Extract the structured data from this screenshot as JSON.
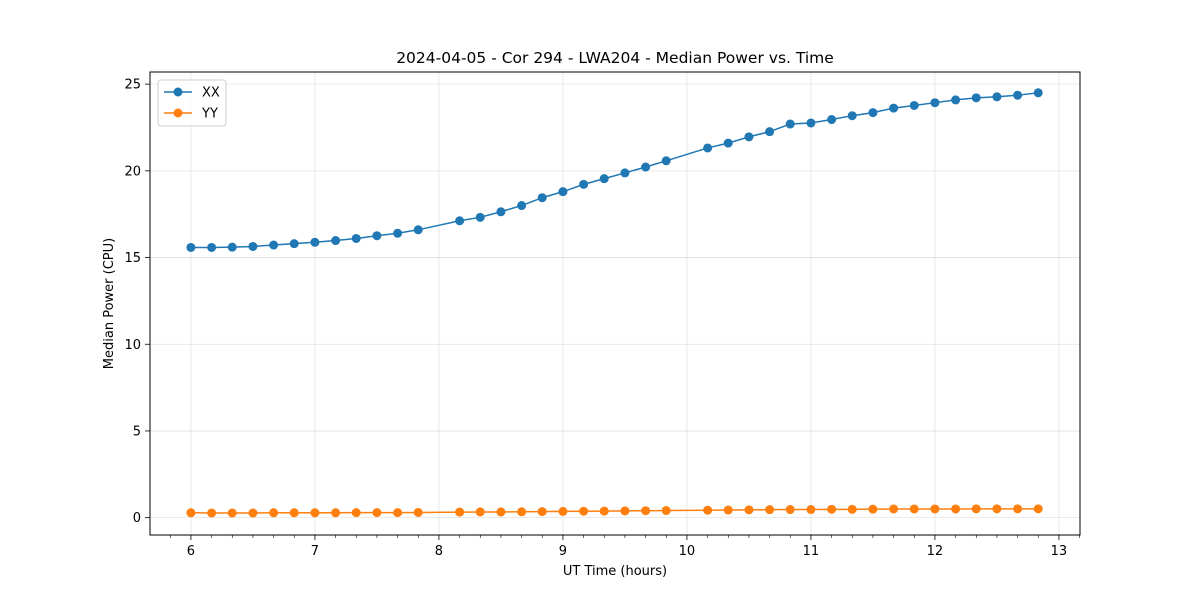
{
  "chart_data": {
    "type": "line",
    "title": "2024-04-05 - Cor 294 - LWA204 - Median Power vs. Time",
    "xlabel": "UT Time (hours)",
    "ylabel": "Median Power (CPU)",
    "xlim": [
      5.67,
      13.17
    ],
    "ylim": [
      -1.0,
      25.7
    ],
    "xticks": [
      6,
      7,
      8,
      9,
      10,
      11,
      12,
      13
    ],
    "xtick_labels": [
      "6",
      "7",
      "8",
      "9",
      "10",
      "11",
      "12",
      "13"
    ],
    "yticks": [
      0,
      5,
      10,
      15,
      20,
      25
    ],
    "ytick_labels": [
      "0",
      "5",
      "10",
      "15",
      "20",
      "25"
    ],
    "grid": true,
    "legend_position": "top-left",
    "series": [
      {
        "name": "XX",
        "color": "#1f77b4",
        "x": [
          6.0,
          6.167,
          6.333,
          6.5,
          6.667,
          6.833,
          7.0,
          7.167,
          7.333,
          7.5,
          7.667,
          7.833,
          8.167,
          8.333,
          8.5,
          8.667,
          8.833,
          9.0,
          9.167,
          9.333,
          9.5,
          9.667,
          9.833,
          10.167,
          10.333,
          10.5,
          10.667,
          10.833,
          11.0,
          11.167,
          11.333,
          11.5,
          11.667,
          11.833,
          12.0,
          12.167,
          12.333,
          12.5,
          12.667,
          12.833
        ],
        "y": [
          15.58,
          15.58,
          15.6,
          15.64,
          15.72,
          15.8,
          15.88,
          15.98,
          16.1,
          16.26,
          16.4,
          16.6,
          17.12,
          17.32,
          17.64,
          18.0,
          18.45,
          18.8,
          19.22,
          19.55,
          19.88,
          20.22,
          20.58,
          21.32,
          21.6,
          21.96,
          22.26,
          22.7,
          22.76,
          22.96,
          23.18,
          23.36,
          23.62,
          23.77,
          23.93,
          24.09,
          24.21,
          24.27,
          24.36,
          24.5
        ]
      },
      {
        "name": "YY",
        "color": "#ff7f0e",
        "x": [
          6.0,
          6.167,
          6.333,
          6.5,
          6.667,
          6.833,
          7.0,
          7.167,
          7.333,
          7.5,
          7.667,
          7.833,
          8.167,
          8.333,
          8.5,
          8.667,
          8.833,
          9.0,
          9.167,
          9.333,
          9.5,
          9.667,
          9.833,
          10.167,
          10.333,
          10.5,
          10.667,
          10.833,
          11.0,
          11.167,
          11.333,
          11.5,
          11.667,
          11.833,
          12.0,
          12.167,
          12.333,
          12.5,
          12.667,
          12.833
        ],
        "y": [
          0.28,
          0.27,
          0.27,
          0.27,
          0.28,
          0.28,
          0.28,
          0.28,
          0.29,
          0.29,
          0.29,
          0.3,
          0.32,
          0.33,
          0.33,
          0.34,
          0.35,
          0.36,
          0.37,
          0.38,
          0.39,
          0.4,
          0.41,
          0.43,
          0.44,
          0.45,
          0.46,
          0.47,
          0.47,
          0.48,
          0.48,
          0.49,
          0.5,
          0.5,
          0.5,
          0.5,
          0.51,
          0.51,
          0.51,
          0.51
        ]
      }
    ]
  }
}
